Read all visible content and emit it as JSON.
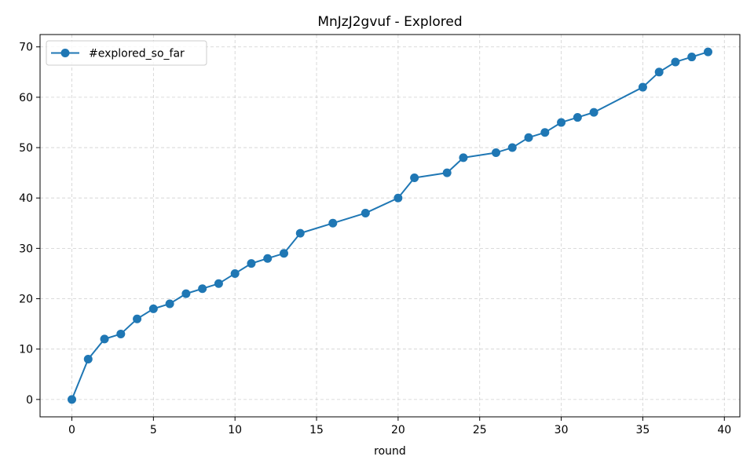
{
  "chart_data": {
    "type": "line",
    "title": "MnJzJ2gvuf - Explored",
    "xlabel": "round",
    "ylabel": "",
    "xlim": [
      -1.95,
      40.95
    ],
    "ylim": [
      -3.45,
      72.45
    ],
    "x_ticks": [
      0,
      5,
      10,
      15,
      20,
      25,
      30,
      35,
      40
    ],
    "y_ticks": [
      0,
      10,
      20,
      30,
      40,
      50,
      60,
      70
    ],
    "grid": true,
    "legend_position": "upper-left",
    "series": [
      {
        "name": "#explored_so_far",
        "color": "#1f77b4",
        "marker": "circle",
        "x": [
          0,
          1,
          2,
          3,
          4,
          5,
          6,
          7,
          8,
          9,
          10,
          11,
          12,
          13,
          14,
          16,
          18,
          20,
          21,
          23,
          24,
          26,
          27,
          28,
          29,
          30,
          31,
          32,
          35,
          36,
          37,
          38,
          39
        ],
        "y": [
          0,
          8,
          12,
          13,
          16,
          18,
          19,
          21,
          22,
          23,
          25,
          27,
          28,
          29,
          33,
          35,
          37,
          40,
          44,
          45,
          48,
          49,
          50,
          52,
          53,
          55,
          56,
          57,
          62,
          65,
          67,
          68,
          69
        ]
      }
    ]
  }
}
